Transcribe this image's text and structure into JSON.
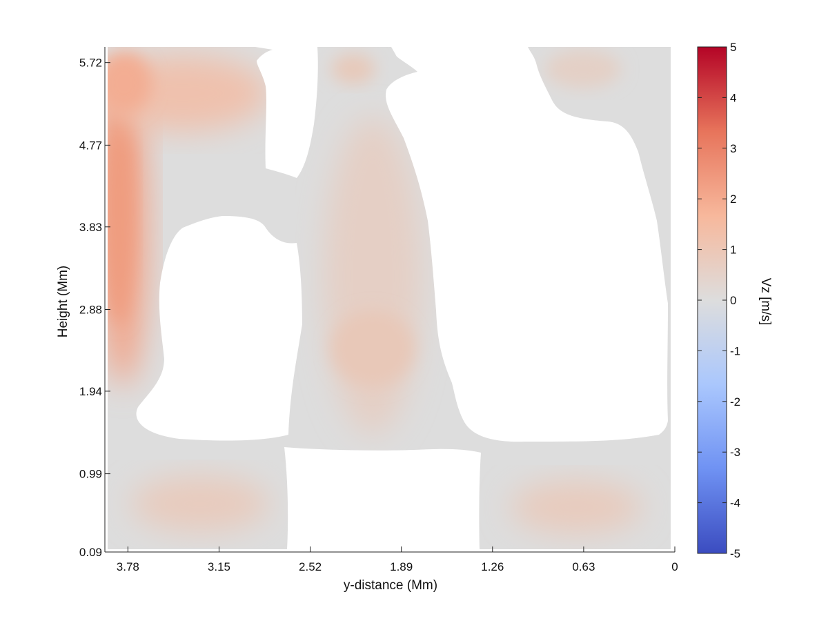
{
  "chart_data": {
    "type": "heatmap",
    "title": "",
    "xlabel": "y-distance (Mm)",
    "ylabel": "Height (Mm)",
    "x_ticks": [
      "3.78",
      "3.15",
      "2.52",
      "1.89",
      "1.26",
      "0.63",
      "0"
    ],
    "x_tick_values": [
      3.78,
      3.15,
      2.52,
      1.89,
      1.26,
      0.63,
      0
    ],
    "xlim": [
      3.92,
      0
    ],
    "x_reversed": true,
    "y_ticks": [
      "0.09",
      "0.99",
      "1.94",
      "2.88",
      "3.83",
      "4.77",
      "5.72"
    ],
    "y_tick_values": [
      0.09,
      0.99,
      1.94,
      2.88,
      3.83,
      4.77,
      5.72
    ],
    "ylim": [
      0.09,
      5.9
    ],
    "background_value": 0,
    "masked_regions_color": "#ffffff",
    "colorbar": {
      "label": "Vz [m/s]",
      "ticks": [
        "5",
        "4",
        "3",
        "2",
        "1",
        "0",
        "-1",
        "-2",
        "-3",
        "-4",
        "-5"
      ],
      "tick_values": [
        5,
        4,
        3,
        2,
        1,
        0,
        -1,
        -2,
        -3,
        -4,
        -5
      ],
      "range": [
        -5,
        5
      ],
      "colormap": "coolwarm",
      "color_stops": [
        "#3b4cc0",
        "#6f92f3",
        "#aac7fd",
        "#dddddd",
        "#f7b89c",
        "#e7745b",
        "#b40426"
      ]
    },
    "features": [
      {
        "name": "left-column-updraft",
        "x_range": [
          3.92,
          3.55
        ],
        "y_range": [
          2.0,
          5.75
        ],
        "peak_value": 2.2
      },
      {
        "name": "upper-left-band",
        "x_range": [
          3.9,
          2.9
        ],
        "y_range": [
          5.0,
          5.75
        ],
        "peak_value": 1.2
      },
      {
        "name": "central-column",
        "x_range": [
          2.4,
          1.55
        ],
        "y_range": [
          1.4,
          5.8
        ],
        "peak_value": 0.7
      },
      {
        "name": "central-core",
        "x_range": [
          2.1,
          1.7
        ],
        "y_range": [
          2.0,
          2.8
        ],
        "peak_value": 0.9
      },
      {
        "name": "bottom-left-cell",
        "x_range": [
          3.6,
          2.7
        ],
        "y_range": [
          0.2,
          0.8
        ],
        "peak_value": 0.7
      },
      {
        "name": "bottom-right-cell",
        "x_range": [
          0.95,
          0.3
        ],
        "y_range": [
          0.2,
          0.8
        ],
        "peak_value": 0.7
      },
      {
        "name": "top-right-cell",
        "x_range": [
          0.8,
          0.45
        ],
        "y_range": [
          5.3,
          5.8
        ],
        "peak_value": 0.5
      }
    ]
  }
}
